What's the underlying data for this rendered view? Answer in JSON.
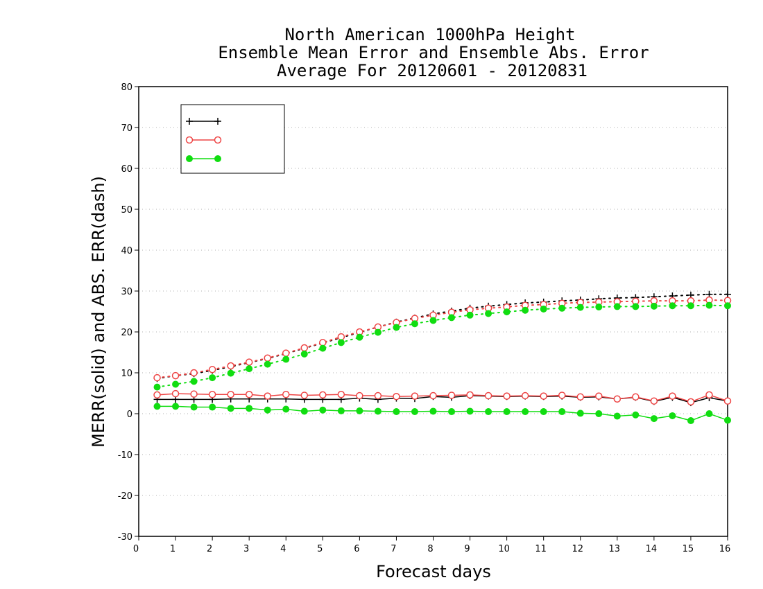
{
  "chart_data": {
    "type": "line",
    "title": [
      "North American 1000hPa Height",
      "Ensemble Mean Error and Ensemble Abs. Error",
      "Average For 20120601 - 20120831"
    ],
    "xlabel": "Forecast days",
    "ylabel": "MERR(solid) and ABS. ERR(dash)",
    "xlim": [
      0,
      16
    ],
    "ylim": [
      -30,
      80
    ],
    "xticks": [
      "0",
      "1",
      "2",
      "3",
      "4",
      "5",
      "6",
      "7",
      "8",
      "9",
      "10",
      "11",
      "12",
      "13",
      "14",
      "15",
      "16"
    ],
    "yticks": [
      "80",
      "70",
      "60",
      "50",
      "40",
      "30",
      "20",
      "10",
      "0",
      "-10",
      "-20",
      "-30"
    ],
    "grid": true,
    "legend_position": "top-left",
    "x": [
      0.5,
      1,
      1.5,
      2,
      2.5,
      3,
      3.5,
      4,
      4.5,
      5,
      5.5,
      6,
      6.5,
      7,
      7.5,
      8,
      8.5,
      9,
      9.5,
      10,
      10.5,
      11,
      11.5,
      12,
      12.5,
      13,
      13.5,
      14,
      14.5,
      15,
      15.5,
      16
    ],
    "series": [
      {
        "name": "",
        "color": "#000000",
        "marker": "plus",
        "merr": [
          3.5,
          3.5,
          3.5,
          3.5,
          3.6,
          3.6,
          3.6,
          3.6,
          3.5,
          3.5,
          3.5,
          3.8,
          3.5,
          3.8,
          3.7,
          4.2,
          4.0,
          4.4,
          4.3,
          4.2,
          4.3,
          4.2,
          4.3,
          4.0,
          4.1,
          3.6,
          4.0,
          3.0,
          4.0,
          2.7,
          3.9,
          3.1
        ],
        "abs_err": [
          8.6,
          9.3,
          9.8,
          10.6,
          11.5,
          12.5,
          13.5,
          14.7,
          16.0,
          17.3,
          18.6,
          19.9,
          21.2,
          22.4,
          23.4,
          24.4,
          25.1,
          25.8,
          26.3,
          26.7,
          27.1,
          27.3,
          27.6,
          27.8,
          28.1,
          28.3,
          28.4,
          28.6,
          28.8,
          29.0,
          29.2,
          29.2
        ]
      },
      {
        "name": "",
        "color": "#ee4444",
        "marker": "open-circle",
        "merr": [
          4.6,
          4.9,
          4.8,
          4.7,
          4.7,
          4.7,
          4.3,
          4.7,
          4.5,
          4.6,
          4.7,
          4.4,
          4.4,
          4.2,
          4.3,
          4.4,
          4.5,
          4.6,
          4.4,
          4.3,
          4.4,
          4.3,
          4.5,
          4.1,
          4.3,
          3.6,
          4.1,
          3.1,
          4.3,
          2.9,
          4.6,
          3.1
        ],
        "abs_err": [
          8.8,
          9.3,
          10.0,
          10.8,
          11.7,
          12.6,
          13.6,
          14.8,
          16.1,
          17.4,
          18.8,
          20.0,
          21.2,
          22.3,
          23.3,
          24.1,
          24.8,
          25.4,
          25.8,
          26.1,
          26.5,
          26.7,
          27.0,
          27.2,
          27.3,
          27.4,
          27.5,
          27.6,
          27.6,
          27.6,
          27.8,
          27.7
        ]
      },
      {
        "name": "",
        "color": "#11dd11",
        "marker": "filled-circle",
        "merr": [
          1.8,
          1.8,
          1.6,
          1.6,
          1.3,
          1.3,
          0.9,
          1.1,
          0.6,
          0.9,
          0.7,
          0.7,
          0.6,
          0.5,
          0.5,
          0.6,
          0.5,
          0.6,
          0.5,
          0.5,
          0.5,
          0.5,
          0.5,
          0.1,
          0.0,
          -0.6,
          -0.3,
          -1.2,
          -0.5,
          -1.7,
          0.0,
          -1.6
        ],
        "abs_err": [
          6.5,
          7.2,
          7.9,
          8.8,
          9.9,
          11.0,
          12.1,
          13.3,
          14.6,
          16.0,
          17.4,
          18.7,
          19.9,
          21.1,
          22.0,
          22.8,
          23.5,
          24.1,
          24.5,
          24.9,
          25.3,
          25.6,
          25.8,
          26.0,
          26.1,
          26.2,
          26.2,
          26.3,
          26.4,
          26.4,
          26.5,
          26.4
        ]
      }
    ]
  }
}
